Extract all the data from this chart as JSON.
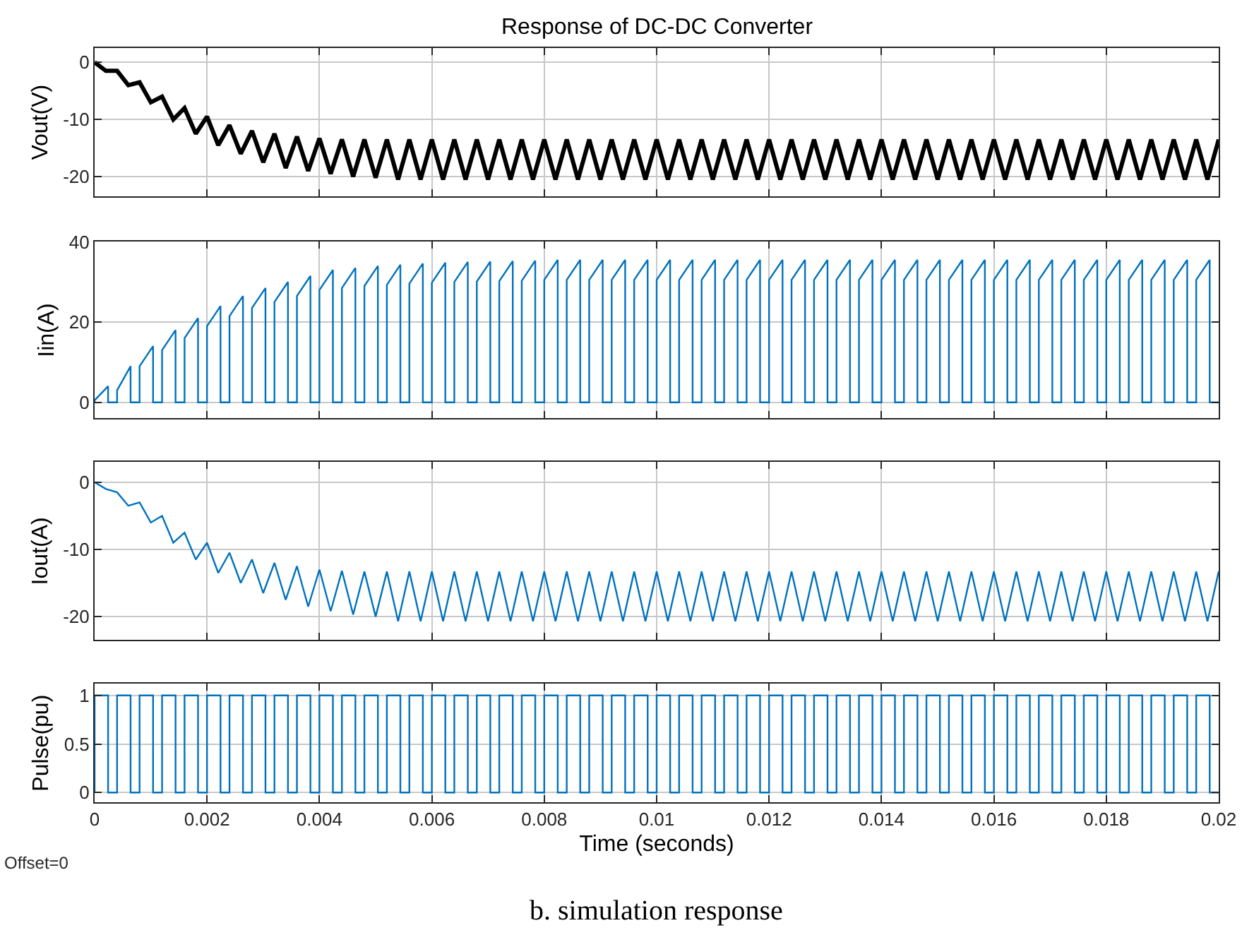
{
  "chart_data": [
    {
      "type": "line",
      "title": "Response of DC-DC Converter",
      "ylabel": "Vout(V)",
      "xlim": [
        0,
        0.02
      ],
      "xticks": [
        0,
        0.002,
        0.004,
        0.006,
        0.008,
        0.01,
        0.012,
        0.014,
        0.016,
        0.018,
        0.02
      ],
      "ylim": [
        -23.5,
        2.5
      ],
      "yticks": [
        -20,
        -10,
        0
      ],
      "grid": true,
      "tick_labels": "y",
      "series": [
        {
          "color": "#000000",
          "x": [
            0,
            0.0002,
            0.0004,
            0.0006,
            0.0008,
            0.001,
            0.0012,
            0.0014,
            0.0016,
            0.0018,
            0.002,
            0.0022,
            0.0024,
            0.0026,
            0.0028,
            0.003,
            0.0032,
            0.0034,
            0.0036,
            0.0038,
            0.004,
            0.0042,
            0.0044,
            0.0046,
            0.0048,
            0.005,
            0.0052,
            0.0054,
            0.0056,
            0.0058,
            0.006,
            0.0062,
            0.0064,
            0.0066,
            0.0068,
            0.007,
            0.0072,
            0.0074,
            0.0076,
            0.0078,
            0.008,
            0.0082,
            0.0084,
            0.0086,
            0.0088,
            0.009,
            0.0092,
            0.0094,
            0.0096,
            0.0098,
            0.01,
            0.0102,
            0.0104,
            0.0106,
            0.0108,
            0.011,
            0.0112,
            0.0114,
            0.0116,
            0.0118,
            0.012,
            0.0122,
            0.0124,
            0.0126,
            0.0128,
            0.013,
            0.0132,
            0.0134,
            0.0136,
            0.0138,
            0.014,
            0.0142,
            0.0144,
            0.0146,
            0.0148,
            0.015,
            0.0152,
            0.0154,
            0.0156,
            0.0158,
            0.016,
            0.0162,
            0.0164,
            0.0166,
            0.0168,
            0.017,
            0.0172,
            0.0174,
            0.0176,
            0.0178,
            0.018,
            0.0182,
            0.0184,
            0.0186,
            0.0188,
            0.019,
            0.0192,
            0.0194,
            0.0196,
            0.0198,
            0.02
          ],
          "values": [
            0,
            -1.5,
            -1.5,
            -4,
            -3.5,
            -7,
            -6,
            -10,
            -8,
            -12.5,
            -9.5,
            -14.5,
            -11,
            -16,
            -12,
            -17.5,
            -12.5,
            -18.5,
            -13,
            -19,
            -13.3,
            -19.5,
            -13.5,
            -20,
            -13.5,
            -20.2,
            -13.5,
            -20.5,
            -13.5,
            -20.5,
            -13.5,
            -20.5,
            -13.5,
            -20.5,
            -13.5,
            -20.5,
            -13.5,
            -20.5,
            -13.5,
            -20.5,
            -13.5,
            -20.5,
            -13.5,
            -20.5,
            -13.5,
            -20.5,
            -13.5,
            -20.5,
            -13.5,
            -20.5,
            -13.5,
            -20.5,
            -13.5,
            -20.5,
            -13.5,
            -20.5,
            -13.5,
            -20.5,
            -13.5,
            -20.5,
            -13.5,
            -20.5,
            -13.5,
            -20.5,
            -13.5,
            -20.5,
            -13.5,
            -20.5,
            -13.5,
            -20.5,
            -13.5,
            -20.5,
            -13.5,
            -20.5,
            -13.5,
            -20.5,
            -13.5,
            -20.5,
            -13.5,
            -20.5,
            -13.5,
            -20.5,
            -13.5,
            -20.5,
            -13.5,
            -20.5,
            -13.5,
            -20.5,
            -13.5,
            -20.5,
            -13.5,
            -20.5,
            -13.5,
            -20.5,
            -13.5,
            -20.5,
            -13.5,
            -20.5,
            -13.5,
            -20.5,
            -13.5
          ]
        }
      ]
    },
    {
      "type": "line",
      "ylabel": "Iin(A)",
      "xlim": [
        0,
        0.02
      ],
      "xticks": [
        0,
        0.002,
        0.004,
        0.006,
        0.008,
        0.01,
        0.012,
        0.014,
        0.016,
        0.018,
        0.02
      ],
      "ylim": [
        -4,
        40
      ],
      "yticks": [
        0,
        20,
        40
      ],
      "grid": true,
      "tick_labels": "y",
      "series": [
        {
          "color": "#0072bd",
          "x": [
            0,
            0,
            0.00024,
            0.00024,
            0.0004,
            0.0004,
            0.00064,
            0.00064,
            0.0008,
            0.0008,
            0.00104,
            0.00104,
            0.0012,
            0.0012,
            0.00144,
            0.00144,
            0.0016,
            0.0016,
            0.00184,
            0.00184,
            0.002,
            0.002,
            0.00224,
            0.00224,
            0.0024,
            0.0024,
            0.00264,
            0.00264,
            0.0028,
            0.0028,
            0.00304,
            0.00304,
            0.0032,
            0.0032,
            0.00344,
            0.00344,
            0.0036,
            0.0036,
            0.00384,
            0.00384,
            0.004,
            0.004,
            0.00424,
            0.00424,
            0.0044,
            0.0044,
            0.00464,
            0.00464,
            0.0048,
            0.0048,
            0.00504,
            0.00504,
            0.0052,
            0.0052,
            0.00544,
            0.00544,
            0.0056,
            0.0056,
            0.00584,
            0.00584,
            0.006,
            0.006,
            0.00624,
            0.00624,
            0.0064,
            0.0064,
            0.00664,
            0.00664,
            0.0068,
            0.0068,
            0.00704,
            0.00704,
            0.0072,
            0.0072,
            0.00744,
            0.00744,
            0.0076,
            0.0076,
            0.00784,
            0.00784,
            0.008,
            0.008,
            0.00824,
            0.00824,
            0.0084,
            0.0084,
            0.00864,
            0.00864,
            0.0088,
            0.0088,
            0.00904,
            0.00904,
            0.0092,
            0.0092,
            0.00944,
            0.00944,
            0.0096,
            0.0096,
            0.00984,
            0.00984,
            0.01,
            0.01,
            0.01024,
            0.01024,
            0.0104,
            0.0104,
            0.01064,
            0.01064,
            0.0108,
            0.0108,
            0.01104,
            0.01104,
            0.0112,
            0.0112,
            0.01144,
            0.01144,
            0.0116,
            0.0116,
            0.01184,
            0.01184,
            0.012,
            0.012,
            0.01224,
            0.01224,
            0.0124,
            0.0124,
            0.01264,
            0.01264,
            0.0128,
            0.0128,
            0.01304,
            0.01304,
            0.0132,
            0.0132,
            0.01344,
            0.01344,
            0.0136,
            0.0136,
            0.01384,
            0.01384,
            0.014,
            0.014,
            0.01424,
            0.01424,
            0.0144,
            0.0144,
            0.01464,
            0.01464,
            0.0148,
            0.0148,
            0.01504,
            0.01504,
            0.0152,
            0.0152,
            0.01544,
            0.01544,
            0.0156,
            0.0156,
            0.01584,
            0.01584,
            0.016,
            0.016,
            0.01624,
            0.01624,
            0.0164,
            0.0164,
            0.01664,
            0.01664,
            0.0168,
            0.0168,
            0.01704,
            0.01704,
            0.0172,
            0.0172,
            0.01744,
            0.01744,
            0.0176,
            0.0176,
            0.01784,
            0.01784,
            0.018,
            0.018,
            0.01824,
            0.01824,
            0.0184,
            0.0184,
            0.01864,
            0.01864,
            0.0188,
            0.0188,
            0.01904,
            0.01904,
            0.0192,
            0.0192,
            0.01944,
            0.01944,
            0.0196,
            0.0196,
            0.01984,
            0.01984,
            0.02
          ],
          "values": [
            0,
            0.5,
            4,
            0,
            0,
            3,
            9,
            0,
            0,
            9,
            14,
            0,
            0,
            13,
            18,
            0,
            0,
            16,
            21,
            0,
            0,
            19,
            24,
            0,
            0,
            21.5,
            26.5,
            0,
            0,
            23.5,
            28.5,
            0,
            0,
            25,
            30,
            0,
            0,
            26.5,
            31.5,
            0,
            0,
            28,
            33,
            0,
            0,
            28.5,
            33.5,
            0,
            0,
            29,
            34,
            0,
            0,
            29.3,
            34.3,
            0,
            0,
            29.6,
            34.6,
            0,
            0,
            29.8,
            34.8,
            0,
            0,
            30,
            35,
            0,
            0,
            30.1,
            35.1,
            0,
            0,
            30.2,
            35.2,
            0,
            0,
            30.3,
            35.3,
            0,
            0,
            30.5,
            35.5,
            0,
            0,
            30.5,
            35.5,
            0,
            0,
            30.5,
            35.5,
            0,
            0,
            30.5,
            35.5,
            0,
            0,
            30.5,
            35.5,
            0,
            0,
            30.5,
            35.5,
            0,
            0,
            30.5,
            35.5,
            0,
            0,
            30.5,
            35.5,
            0,
            0,
            30.5,
            35.5,
            0,
            0,
            30.5,
            35.5,
            0,
            0,
            30.5,
            35.5,
            0,
            0,
            30.5,
            35.5,
            0,
            0,
            30.5,
            35.5,
            0,
            0,
            30.5,
            35.5,
            0,
            0,
            30.5,
            35.5,
            0,
            0,
            30.5,
            35.5,
            0,
            0,
            30.5,
            35.5,
            0,
            0,
            30.5,
            35.5,
            0,
            0,
            30.5,
            35.5,
            0,
            0,
            30.5,
            35.5,
            0,
            0,
            30.5,
            35.5,
            0,
            0,
            30.5,
            35.5,
            0,
            0,
            30.5,
            35.5,
            0,
            0,
            30.5,
            35.5,
            0,
            0,
            30.5,
            35.5,
            0,
            0,
            30.5,
            35.5,
            0,
            0,
            30.5,
            35.5,
            0,
            0,
            30.5,
            35.5,
            0,
            0,
            30.5,
            35.5,
            0,
            0,
            30.5,
            35.5,
            0,
            0
          ]
        }
      ]
    },
    {
      "type": "line",
      "ylabel": "Iout(A)",
      "xlim": [
        0,
        0.02
      ],
      "xticks": [
        0,
        0.002,
        0.004,
        0.006,
        0.008,
        0.01,
        0.012,
        0.014,
        0.016,
        0.018,
        0.02
      ],
      "ylim": [
        -23.5,
        3
      ],
      "yticks": [
        -20,
        -10,
        0
      ],
      "grid": true,
      "tick_labels": "y",
      "series": [
        {
          "color": "#0072bd",
          "x": [
            0,
            0.0002,
            0.0004,
            0.0006,
            0.0008,
            0.001,
            0.0012,
            0.0014,
            0.0016,
            0.0018,
            0.002,
            0.0022,
            0.0024,
            0.0026,
            0.0028,
            0.003,
            0.0032,
            0.0034,
            0.0036,
            0.0038,
            0.004,
            0.0042,
            0.0044,
            0.0046,
            0.0048,
            0.005,
            0.0052,
            0.0054,
            0.0056,
            0.0058,
            0.006,
            0.0062,
            0.0064,
            0.0066,
            0.0068,
            0.007,
            0.0072,
            0.0074,
            0.0076,
            0.0078,
            0.008,
            0.0082,
            0.0084,
            0.0086,
            0.0088,
            0.009,
            0.0092,
            0.0094,
            0.0096,
            0.0098,
            0.01,
            0.0102,
            0.0104,
            0.0106,
            0.0108,
            0.011,
            0.0112,
            0.0114,
            0.0116,
            0.0118,
            0.012,
            0.0122,
            0.0124,
            0.0126,
            0.0128,
            0.013,
            0.0132,
            0.0134,
            0.0136,
            0.0138,
            0.014,
            0.0142,
            0.0144,
            0.0146,
            0.0148,
            0.015,
            0.0152,
            0.0154,
            0.0156,
            0.0158,
            0.016,
            0.0162,
            0.0164,
            0.0166,
            0.0168,
            0.017,
            0.0172,
            0.0174,
            0.0176,
            0.0178,
            0.018,
            0.0182,
            0.0184,
            0.0186,
            0.0188,
            0.019,
            0.0192,
            0.0194,
            0.0196,
            0.0198,
            0.02
          ],
          "values": [
            0,
            -1,
            -1.5,
            -3.5,
            -3,
            -6,
            -5,
            -9,
            -7.5,
            -11.5,
            -9,
            -13.5,
            -10.5,
            -15,
            -11.5,
            -16.5,
            -12,
            -17.5,
            -12.5,
            -18.5,
            -13,
            -19.2,
            -13.2,
            -19.7,
            -13.3,
            -20,
            -13.3,
            -20.7,
            -13.3,
            -20.7,
            -13.3,
            -20.7,
            -13.3,
            -20.7,
            -13.3,
            -20.7,
            -13.3,
            -20.7,
            -13.3,
            -20.7,
            -13.3,
            -20.7,
            -13.3,
            -20.7,
            -13.3,
            -20.7,
            -13.3,
            -20.7,
            -13.3,
            -20.7,
            -13.3,
            -20.7,
            -13.3,
            -20.7,
            -13.3,
            -20.7,
            -13.3,
            -20.7,
            -13.3,
            -20.7,
            -13.3,
            -20.7,
            -13.3,
            -20.7,
            -13.3,
            -20.7,
            -13.3,
            -20.7,
            -13.3,
            -20.7,
            -13.3,
            -20.7,
            -13.3,
            -20.7,
            -13.3,
            -20.7,
            -13.3,
            -20.7,
            -13.3,
            -20.7,
            -13.3,
            -20.7,
            -13.3,
            -20.7,
            -13.3,
            -20.7,
            -13.3,
            -20.7,
            -13.3,
            -20.7,
            -13.3,
            -20.7,
            -13.3,
            -20.7,
            -13.3,
            -20.7,
            -13.3,
            -20.7,
            -13.3,
            -20.7,
            -13.3
          ]
        }
      ]
    },
    {
      "type": "line",
      "ylabel": "Pulse(pu)",
      "xlabel": "Time (seconds)",
      "xlim": [
        0,
        0.02
      ],
      "xticks": [
        0,
        0.002,
        0.004,
        0.006,
        0.008,
        0.01,
        0.012,
        0.014,
        0.016,
        0.018,
        0.02
      ],
      "ylim": [
        -0.1,
        1.12
      ],
      "yticks": [
        0,
        0.5,
        1
      ],
      "grid": true,
      "annotations": [
        "Offset=0",
        "b. simulation response"
      ],
      "series": [
        {
          "color": "#0072bd",
          "x": [
            0,
            0,
            0.00024,
            0.00024,
            0.0004,
            0.0004,
            0.00064,
            0.00064,
            0.0008,
            0.0008,
            0.00104,
            0.00104,
            0.0012,
            0.0012,
            0.00144,
            0.00144,
            0.0016,
            0.0016,
            0.00184,
            0.00184,
            0.002,
            0.002,
            0.00224,
            0.00224,
            0.0024,
            0.0024,
            0.00264,
            0.00264,
            0.0028,
            0.0028,
            0.00304,
            0.00304,
            0.0032,
            0.0032,
            0.00344,
            0.00344,
            0.0036,
            0.0036,
            0.00384,
            0.00384,
            0.004,
            0.004,
            0.00424,
            0.00424,
            0.0044,
            0.0044,
            0.00464,
            0.00464,
            0.0048,
            0.0048,
            0.00504,
            0.00504,
            0.0052,
            0.0052,
            0.00544,
            0.00544,
            0.0056,
            0.0056,
            0.00584,
            0.00584,
            0.006,
            0.006,
            0.00624,
            0.00624,
            0.0064,
            0.0064,
            0.00664,
            0.00664,
            0.0068,
            0.0068,
            0.00704,
            0.00704,
            0.0072,
            0.0072,
            0.00744,
            0.00744,
            0.0076,
            0.0076,
            0.00784,
            0.00784,
            0.008,
            0.008,
            0.00824,
            0.00824,
            0.0084,
            0.0084,
            0.00864,
            0.00864,
            0.0088,
            0.0088,
            0.00904,
            0.00904,
            0.0092,
            0.0092,
            0.00944,
            0.00944,
            0.0096,
            0.0096,
            0.00984,
            0.00984,
            0.01,
            0.01,
            0.01024,
            0.01024,
            0.0104,
            0.0104,
            0.01064,
            0.01064,
            0.0108,
            0.0108,
            0.01104,
            0.01104,
            0.0112,
            0.0112,
            0.01144,
            0.01144,
            0.0116,
            0.0116,
            0.01184,
            0.01184,
            0.012,
            0.012,
            0.01224,
            0.01224,
            0.0124,
            0.0124,
            0.01264,
            0.01264,
            0.0128,
            0.0128,
            0.01304,
            0.01304,
            0.0132,
            0.0132,
            0.01344,
            0.01344,
            0.0136,
            0.0136,
            0.01384,
            0.01384,
            0.014,
            0.014,
            0.01424,
            0.01424,
            0.0144,
            0.0144,
            0.01464,
            0.01464,
            0.0148,
            0.0148,
            0.01504,
            0.01504,
            0.0152,
            0.0152,
            0.01544,
            0.01544,
            0.0156,
            0.0156,
            0.01584,
            0.01584,
            0.016,
            0.016,
            0.01624,
            0.01624,
            0.0164,
            0.0164,
            0.01664,
            0.01664,
            0.0168,
            0.0168,
            0.01704,
            0.01704,
            0.0172,
            0.0172,
            0.01744,
            0.01744,
            0.0176,
            0.0176,
            0.01784,
            0.01784,
            0.018,
            0.018,
            0.01824,
            0.01824,
            0.0184,
            0.0184,
            0.01864,
            0.01864,
            0.0188,
            0.0188,
            0.01904,
            0.01904,
            0.0192,
            0.0192,
            0.01944,
            0.01944,
            0.0196,
            0.0196,
            0.01984,
            0.01984,
            0.02
          ],
          "values": [
            0,
            1,
            1,
            0,
            0,
            1,
            1,
            0,
            0,
            1,
            1,
            0,
            0,
            1,
            1,
            0,
            0,
            1,
            1,
            0,
            0,
            1,
            1,
            0,
            0,
            1,
            1,
            0,
            0,
            1,
            1,
            0,
            0,
            1,
            1,
            0,
            0,
            1,
            1,
            0,
            0,
            1,
            1,
            0,
            0,
            1,
            1,
            0,
            0,
            1,
            1,
            0,
            0,
            1,
            1,
            0,
            0,
            1,
            1,
            0,
            0,
            1,
            1,
            0,
            0,
            1,
            1,
            0,
            0,
            1,
            1,
            0,
            0,
            1,
            1,
            0,
            0,
            1,
            1,
            0,
            0,
            1,
            1,
            0,
            0,
            1,
            1,
            0,
            0,
            1,
            1,
            0,
            0,
            1,
            1,
            0,
            0,
            1,
            1,
            0,
            0,
            1,
            1,
            0,
            0,
            1,
            1,
            0,
            0,
            1,
            1,
            0,
            0,
            1,
            1,
            0,
            0,
            1,
            1,
            0,
            0,
            1,
            1,
            0,
            0,
            1,
            1,
            0,
            0,
            1,
            1,
            0,
            0,
            1,
            1,
            0,
            0,
            1,
            1,
            0,
            0,
            1,
            1,
            0,
            0,
            1,
            1,
            0,
            0,
            1,
            1,
            0,
            0,
            1,
            1,
            0,
            0,
            1,
            1,
            0,
            0,
            1,
            1,
            0,
            0,
            1,
            1,
            0,
            0,
            1,
            1,
            0,
            0,
            1,
            1,
            0,
            0,
            1,
            1,
            0,
            0,
            1,
            1,
            0,
            0,
            1,
            1,
            0,
            0,
            1,
            1,
            0,
            0,
            1,
            1,
            0,
            0,
            1,
            1,
            0,
            0
          ]
        }
      ]
    }
  ]
}
